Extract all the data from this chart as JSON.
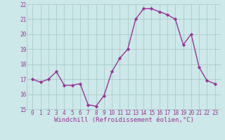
{
  "x": [
    0,
    1,
    2,
    3,
    4,
    5,
    6,
    7,
    8,
    9,
    10,
    11,
    12,
    13,
    14,
    15,
    16,
    17,
    18,
    19,
    20,
    21,
    22,
    23
  ],
  "y": [
    17.0,
    16.8,
    17.0,
    17.5,
    16.6,
    16.6,
    16.7,
    15.3,
    15.2,
    15.9,
    17.5,
    18.4,
    19.0,
    21.0,
    21.7,
    21.7,
    21.5,
    21.3,
    21.0,
    19.3,
    20.0,
    17.8,
    16.9,
    16.7
  ],
  "line_color": "#993399",
  "marker": "D",
  "marker_size": 2.2,
  "linewidth": 1.0,
  "xlabel": "Windchill (Refroidissement éolien,°C)",
  "xlabel_fontsize": 6.5,
  "bg_color": "#cce8e8",
  "grid_color": "#aacccc",
  "tick_color": "#993399",
  "label_color": "#993399",
  "ylim": [
    15,
    22
  ],
  "yticks": [
    15,
    16,
    17,
    18,
    19,
    20,
    21,
    22
  ],
  "xticks": [
    0,
    1,
    2,
    3,
    4,
    5,
    6,
    7,
    8,
    9,
    10,
    11,
    12,
    13,
    14,
    15,
    16,
    17,
    18,
    19,
    20,
    21,
    22,
    23
  ],
  "tick_fontsize": 5.5,
  "ylabel_fontsize": 6.0
}
